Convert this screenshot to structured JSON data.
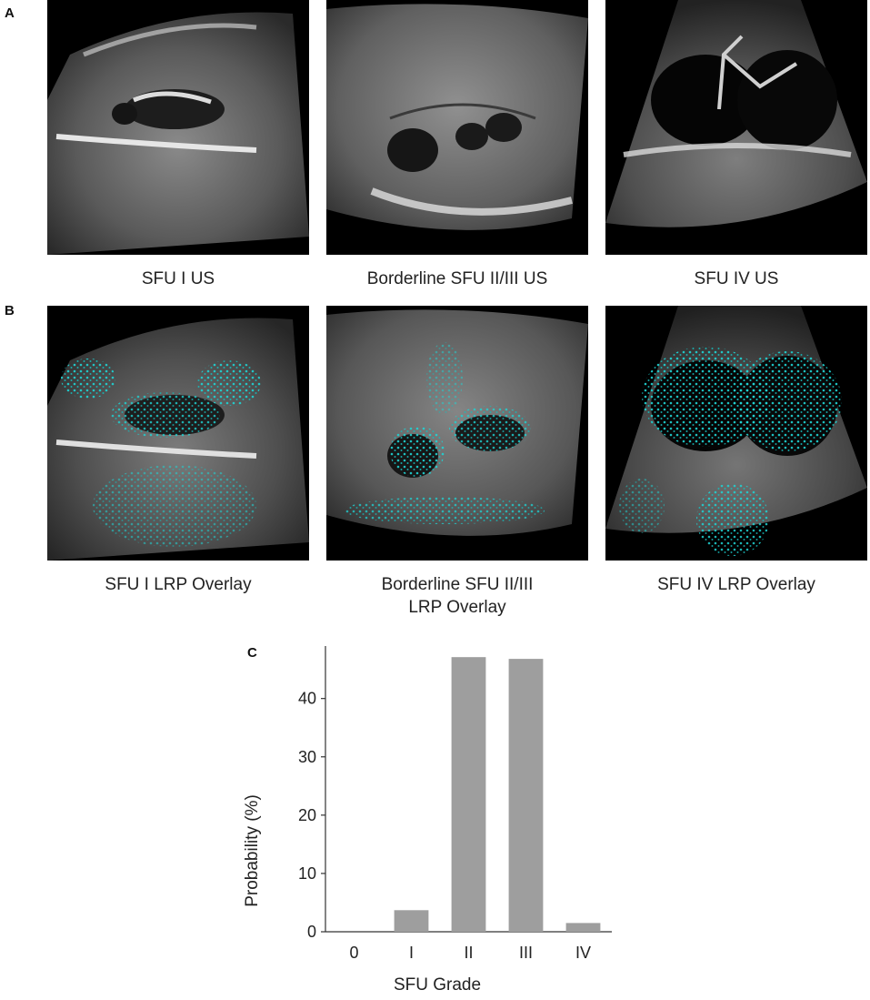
{
  "panels": {
    "a": {
      "letter": "A",
      "images": [
        {
          "caption": "SFU I US"
        },
        {
          "caption": "Borderline SFU II/III US"
        },
        {
          "caption": "SFU IV US"
        }
      ]
    },
    "b": {
      "letter": "B",
      "images": [
        {
          "caption": "SFU I LRP Overlay"
        },
        {
          "caption_line1": "Borderline SFU II/III",
          "caption_line2": "LRP Overlay"
        },
        {
          "caption": "SFU IV LRP Overlay"
        }
      ],
      "overlay_color": "#1fd3d3"
    },
    "c": {
      "letter": "C"
    }
  },
  "chart_data": {
    "type": "bar",
    "categories": [
      "0",
      "I",
      "II",
      "III",
      "IV"
    ],
    "values": [
      0,
      3.7,
      47.1,
      46.8,
      1.5
    ],
    "xlabel": "SFU Grade",
    "ylabel": "Probability (%)",
    "yticks": [
      0,
      10,
      20,
      30,
      40
    ],
    "ylim": [
      0,
      49
    ],
    "bar_color": "#9e9e9e",
    "grid": false
  }
}
